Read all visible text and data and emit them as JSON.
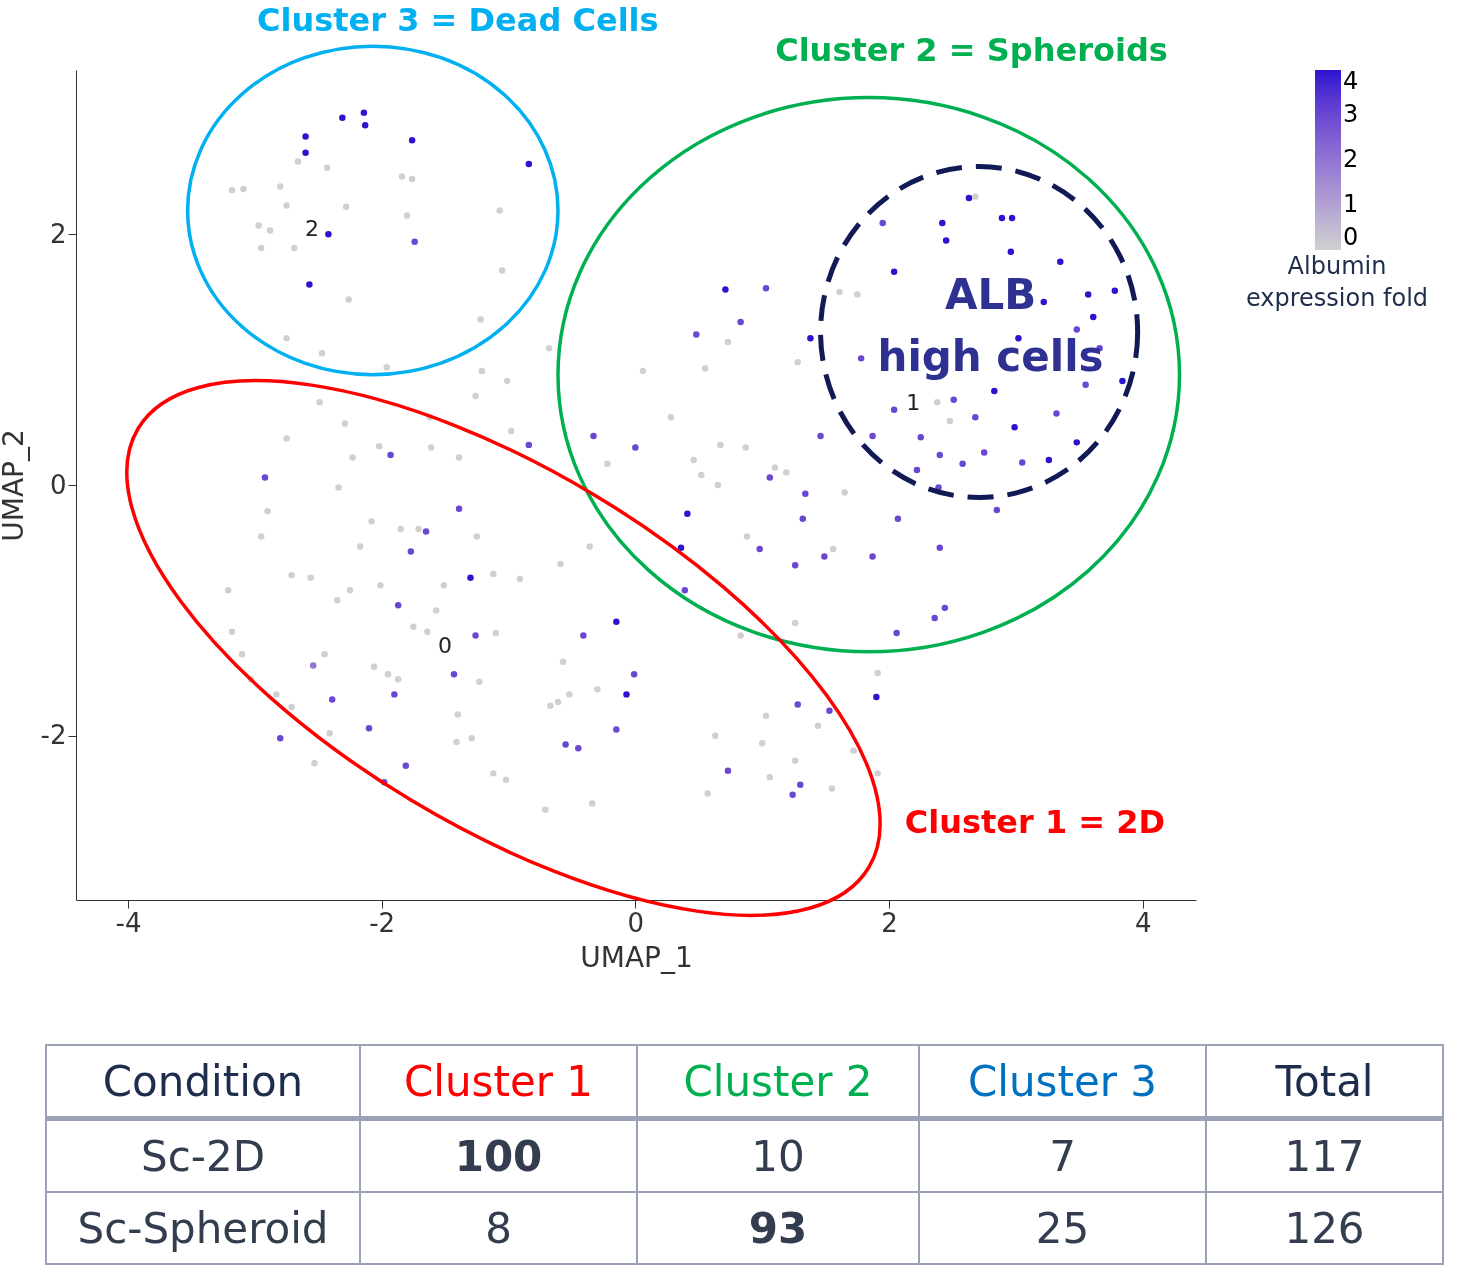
{
  "chart_data": [
    {
      "type": "scatter",
      "xlabel": "UMAP_1",
      "ylabel": "UMAP_2",
      "clabel": "Albumin expression fold",
      "xlim": [
        -4.41,
        4.42
      ],
      "ylim": [
        -3.31,
        3.31
      ],
      "xticks": [
        -4,
        -2,
        0,
        2,
        4
      ],
      "yticks": [
        -2,
        0,
        2
      ],
      "clim": [
        0,
        4
      ],
      "cticks": [
        0,
        1,
        2,
        3,
        4
      ],
      "grid": false,
      "marker": "circle",
      "x": [
        -2.6,
        -2.6,
        -2.31,
        -2.14,
        -2.13,
        -1.76,
        -0.84,
        -2.42,
        -2.57,
        -1.74,
        -3.18,
        -3.09,
        -2.8,
        -2.66,
        -2.43,
        -2.97,
        -2.88,
        -2.95,
        -2.69,
        -2.75,
        -2.28,
        -1.84,
        -1.76,
        -1.8,
        -1.07,
        -2.26,
        -1.05,
        -2.75,
        -2.47,
        -1.96,
        -1.22,
        -0.68,
        -2.49,
        -2.29,
        -2.75,
        -2.92,
        -2.9,
        -2.95,
        -3.21,
        -3.18,
        -3.1,
        -3.03,
        -2.83,
        -2.71,
        -2.8,
        -2.53,
        -2.71,
        -2.56,
        -2.25,
        -2.35,
        -2.45,
        -2.54,
        -2.39,
        -2.41,
        -2.1,
        -1.98,
        -2.06,
        -1.95,
        -1.87,
        -1.9,
        -1.81,
        -2.01,
        -1.87,
        -1.75,
        -1.64,
        -1.57,
        -1.51,
        -1.77,
        -1.85,
        -2.17,
        -2.08,
        -2.34,
        -2.23,
        -2.02,
        -1.93,
        -1.71,
        -1.65,
        -1.62,
        -1.39,
        -1.39,
        -1.25,
        -1.3,
        -1.12,
        -0.91,
        -1.26,
        -1.1,
        -1.43,
        -1.23,
        -1.4,
        -1.41,
        -1.29,
        -1.12,
        -1.02,
        -0.71,
        -0.34,
        -0.67,
        -0.61,
        -0.52,
        -0.55,
        -0.45,
        -0.57,
        -0.41,
        -0.15,
        -0.01,
        -0.07,
        -0.15,
        -0.3,
        -0.36,
        -0.59,
        -0.33,
        -0.84,
        -0.98,
        -1.01,
        -1.21,
        -1.26,
        -1.61,
        -0.22,
        0,
        0.28,
        0.06,
        0.48,
        0.71,
        1.03,
        0.83,
        0.73,
        0.55,
        0.41,
        0.36,
        0.39,
        0.46,
        0.67,
        0.52,
        0.65,
        0.87,
        1.06,
        1.1,
        1.19,
        1.34,
        1.32,
        0.98,
        0.88,
        1.26,
        1.49,
        1.56,
        1.65,
        1.46,
        1.38,
        1.28,
        1.87,
        2.07,
        2.4,
        2.44,
        2.36,
        2.06,
        1.91,
        1.9,
        0.83,
        1.26,
        1.28,
        1.53,
        1.44,
        1.03,
        1,
        0.73,
        0.63,
        0.57,
        1.26,
        1.3,
        1.24,
        1.55,
        1.72,
        1.91,
        1.06,
        1.95,
        2.04,
        2.42,
        2.63,
        2.68,
        2.89,
        2.97,
        2.45,
        2.96,
        3.35,
        3.57,
        3.78,
        3.61,
        3.48,
        3.22,
        3.66,
        3.84,
        3.55,
        3.02,
        2.83,
        2.51,
        2.68,
        2.99,
        3.32,
        3.48,
        3.26,
        2.75,
        2.58,
        2.4,
        2.22,
        2.25,
        2.04,
        1.87,
        1.78,
        1.61,
        1.75,
        2.39,
        2.85,
        3.05,
        2.48,
        2.38
      ],
      "values": [
        2.78,
        2.65,
        2.93,
        2.97,
        2.87,
        2.75,
        2.56,
        2,
        1.6,
        1.94,
        2.35,
        2.36,
        2.38,
        2.58,
        2.53,
        2.07,
        2.03,
        1.89,
        1.89,
        2.23,
        2.22,
        2.46,
        2.44,
        2.15,
        2.19,
        1.48,
        1.71,
        1.17,
        1.05,
        0.94,
        1.32,
        1.09,
        0.66,
        0.49,
        0.37,
        0.06,
        -0.21,
        -0.41,
        -0.84,
        -1.17,
        -1.35,
        -1.55,
        -1.67,
        -1.77,
        -2.02,
        -2.22,
        -0.72,
        -0.74,
        -0.84,
        -0.92,
        -1.35,
        -1.44,
        -1.71,
        -1.98,
        -1.94,
        -2.37,
        -1.45,
        -1.51,
        -1.55,
        -1.67,
        -2.24,
        -0.8,
        -0.96,
        -1.13,
        -1.17,
        -1,
        -0.8,
        -0.53,
        -0.35,
        -0.49,
        -0.29,
        -0.02,
        0.22,
        0.31,
        0.24,
        -0.35,
        -0.37,
        0.54,
        0.22,
        -0.19,
        -0.41,
        -0.74,
        -0.71,
        -0.75,
        -1.2,
        -1.18,
        -1.51,
        -1.57,
        -1.83,
        -2.05,
        -2.02,
        -2.3,
        -2.35,
        -2.59,
        -2.54,
        -1.76,
        -1.73,
        -1.67,
        -2.07,
        -2.1,
        -1.41,
        -1.2,
        -1.09,
        -1.51,
        -1.67,
        -1.95,
        -1.63,
        -0.49,
        -0.63,
        0.39,
        0.32,
        0.43,
        0.83,
        0.91,
        0.71,
        0.3,
        0.17,
        0.3,
        0.54,
        0.91,
        1.2,
        1.56,
        1.57,
        1.3,
        1.14,
        0.93,
        -0.23,
        -0.5,
        -0.84,
        0.2,
        0.32,
        0.08,
        0,
        0.3,
        0.06,
        0.14,
        0.1,
        -0.07,
        -0.27,
        -0.51,
        -0.41,
        -0.64,
        -0.57,
        -0.51,
        -0.06,
        0.39,
        1.17,
        0.98,
        -0.57,
        -0.27,
        -0.5,
        -0.98,
        -1.06,
        -1.18,
        -1.5,
        -1.69,
        -1.2,
        -1.1,
        -1.75,
        -1.8,
        -1.92,
        -1.84,
        -2.06,
        -2.28,
        -2,
        -2.46,
        -2.2,
        -2.39,
        -2.47,
        -2.42,
        -2.12,
        -2.3,
        -2.33,
        2.09,
        1.7,
        2.09,
        2.29,
        2.3,
        2.13,
        2.13,
        1.95,
        1.86,
        1.78,
        1.52,
        1.55,
        1.34,
        1.24,
        1.46,
        1.09,
        0.83,
        0.8,
        1.17,
        0.75,
        0.68,
        0.54,
        0.46,
        0.57,
        0.34,
        0.2,
        0.26,
        0.17,
        0.24,
        0.12,
        0.38,
        0.6,
        0.39,
        1.01,
        1.54,
        1.52,
        -0.02,
        -0.2,
        0.18,
        0.51,
        0.66
      ],
      "cvalues": [
        4,
        4,
        4,
        4,
        4,
        4,
        4,
        4,
        4,
        3,
        0,
        0,
        0,
        0,
        0,
        0,
        0,
        0,
        0,
        0,
        0,
        0,
        0,
        0,
        0,
        0,
        0,
        0,
        0,
        0,
        0,
        0,
        0,
        0,
        0,
        3,
        0,
        0,
        0,
        0,
        0,
        0,
        0,
        0,
        3,
        0,
        0,
        0,
        0,
        0,
        0,
        2,
        3,
        0,
        3,
        3,
        0,
        0,
        0,
        3,
        3,
        0,
        3,
        0,
        0,
        0,
        0,
        3,
        0,
        0,
        0,
        0,
        0,
        0,
        3,
        0,
        3,
        0,
        0,
        3,
        0,
        4,
        0,
        0,
        3,
        0,
        3,
        0,
        0,
        0,
        0,
        0,
        0,
        0,
        0,
        0,
        0,
        0,
        3,
        3,
        0,
        3,
        4,
        3,
        4,
        3,
        0,
        0,
        0,
        3,
        3,
        0,
        0,
        0,
        0,
        0,
        0,
        3,
        0,
        0,
        3,
        4,
        3,
        3,
        0,
        0,
        4,
        4,
        3,
        0,
        0,
        0,
        0,
        0,
        3,
        0,
        0,
        3,
        3,
        3,
        0,
        3,
        3,
        0,
        0,
        3,
        4,
        0,
        3,
        3,
        3,
        3,
        3,
        3,
        0,
        4,
        0,
        0,
        3,
        3,
        0,
        0,
        0,
        3,
        0,
        0,
        0,
        3,
        3,
        0,
        0,
        0,
        0,
        3,
        4,
        4,
        4,
        0,
        4,
        4,
        4,
        4,
        4,
        4,
        4,
        4,
        3,
        4,
        3,
        4,
        3,
        4,
        4,
        3,
        3,
        4,
        3,
        4,
        4,
        3,
        3,
        3,
        3,
        3,
        3,
        3,
        3,
        0,
        0,
        3,
        3,
        3,
        0,
        0
      ],
      "annotations": [
        "Cluster 3 = Dead Cells",
        "Cluster 2 = Spheroids",
        "ALB high cells",
        "Cluster 1 = 2D",
        "2",
        "1",
        "0"
      ]
    },
    {
      "type": "other",
      "categories": [
        "Sc-2D",
        "Sc-Spheroid"
      ],
      "series": [
        {
          "name": "Cluster 1",
          "color": "#ff0000",
          "values": [
            100,
            8
          ]
        },
        {
          "name": "Cluster 2",
          "color": "#00b050",
          "values": [
            10,
            93
          ]
        },
        {
          "name": "Cluster 3",
          "color": "#0070c0",
          "values": [
            7,
            25
          ]
        }
      ],
      "totals": [
        "117",
        "126"
      ],
      "data_labels": true,
      "annotations": [
        "Condition",
        "Total"
      ]
    }
  ]
}
